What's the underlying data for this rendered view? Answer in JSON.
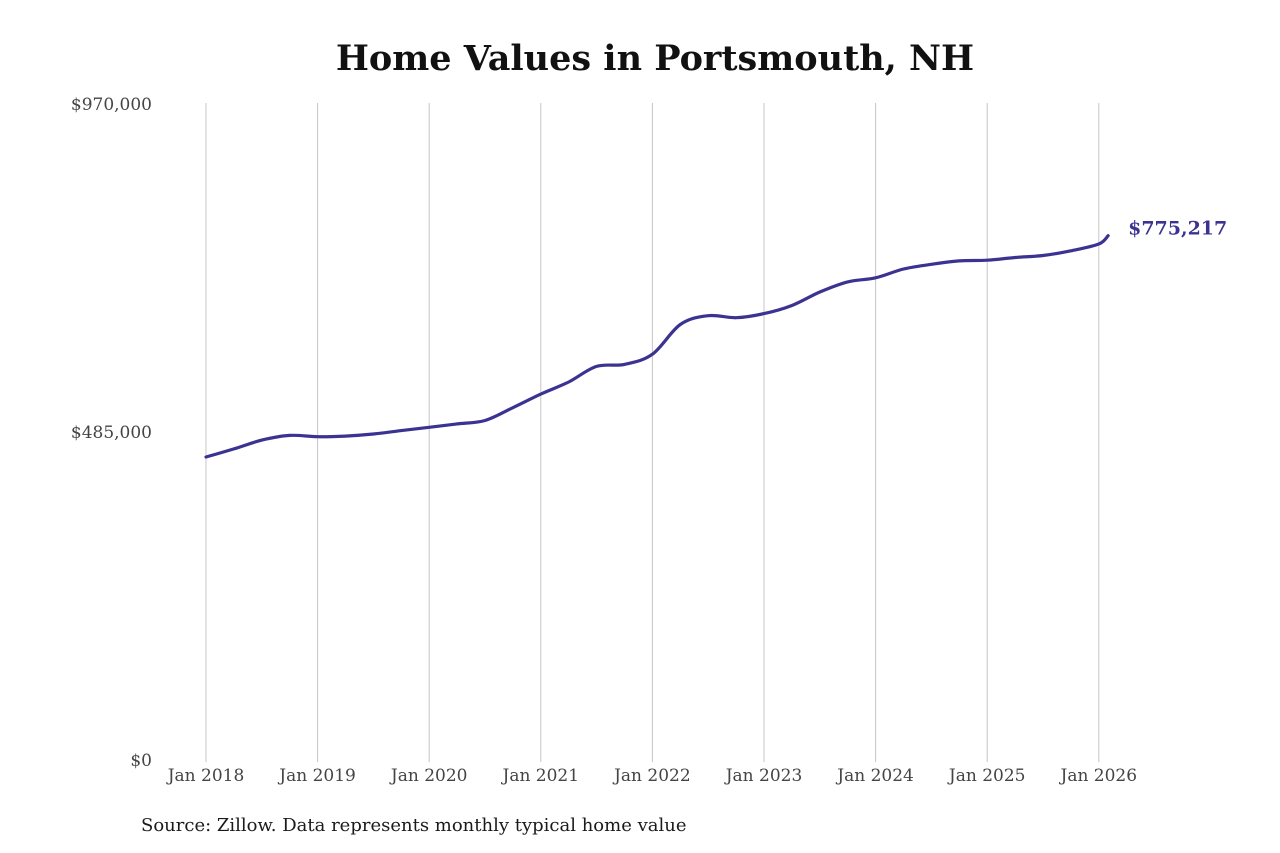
{
  "chart_data": {
    "type": "line",
    "title": "Home Values in Portsmouth, NH",
    "xlabel": "",
    "ylabel": "",
    "source_note": "Source: Zillow. Data represents monthly typical home value",
    "ylim": [
      0,
      970000
    ],
    "y_ticks": [
      "$0",
      "$485,000",
      "$970,000"
    ],
    "x_ticks": [
      "Jan 2018",
      "Jan 2019",
      "Jan 2020",
      "Jan 2021",
      "Jan 2022",
      "Jan 2023",
      "Jan 2024",
      "Jan 2025",
      "Jan 2026"
    ],
    "grid": "vertical",
    "line_color": "#3b3391",
    "end_value_label": "$775,217",
    "series": [
      {
        "values": [
          [
            "2018-01",
            448000
          ],
          [
            "2018-04",
            460000
          ],
          [
            "2018-07",
            473000
          ],
          [
            "2018-10",
            480000
          ],
          [
            "2019-01",
            478000
          ],
          [
            "2019-04",
            479000
          ],
          [
            "2019-07",
            482000
          ],
          [
            "2019-10",
            487000
          ],
          [
            "2020-01",
            492000
          ],
          [
            "2020-04",
            497000
          ],
          [
            "2020-07",
            502000
          ],
          [
            "2020-10",
            521000
          ],
          [
            "2021-01",
            541000
          ],
          [
            "2021-04",
            559000
          ],
          [
            "2021-07",
            582000
          ],
          [
            "2021-10",
            585000
          ],
          [
            "2022-01",
            600000
          ],
          [
            "2022-04",
            644000
          ],
          [
            "2022-07",
            657000
          ],
          [
            "2022-10",
            654000
          ],
          [
            "2023-01",
            660000
          ],
          [
            "2023-04",
            672000
          ],
          [
            "2023-07",
            692000
          ],
          [
            "2023-10",
            707000
          ],
          [
            "2024-01",
            713000
          ],
          [
            "2024-04",
            726000
          ],
          [
            "2024-07",
            733000
          ],
          [
            "2024-10",
            738000
          ],
          [
            "2025-01",
            739000
          ],
          [
            "2025-04",
            743000
          ],
          [
            "2025-07",
            746000
          ],
          [
            "2025-10",
            753000
          ],
          [
            "2026-01",
            763000
          ],
          [
            "2026-02",
            775217
          ]
        ]
      }
    ]
  }
}
